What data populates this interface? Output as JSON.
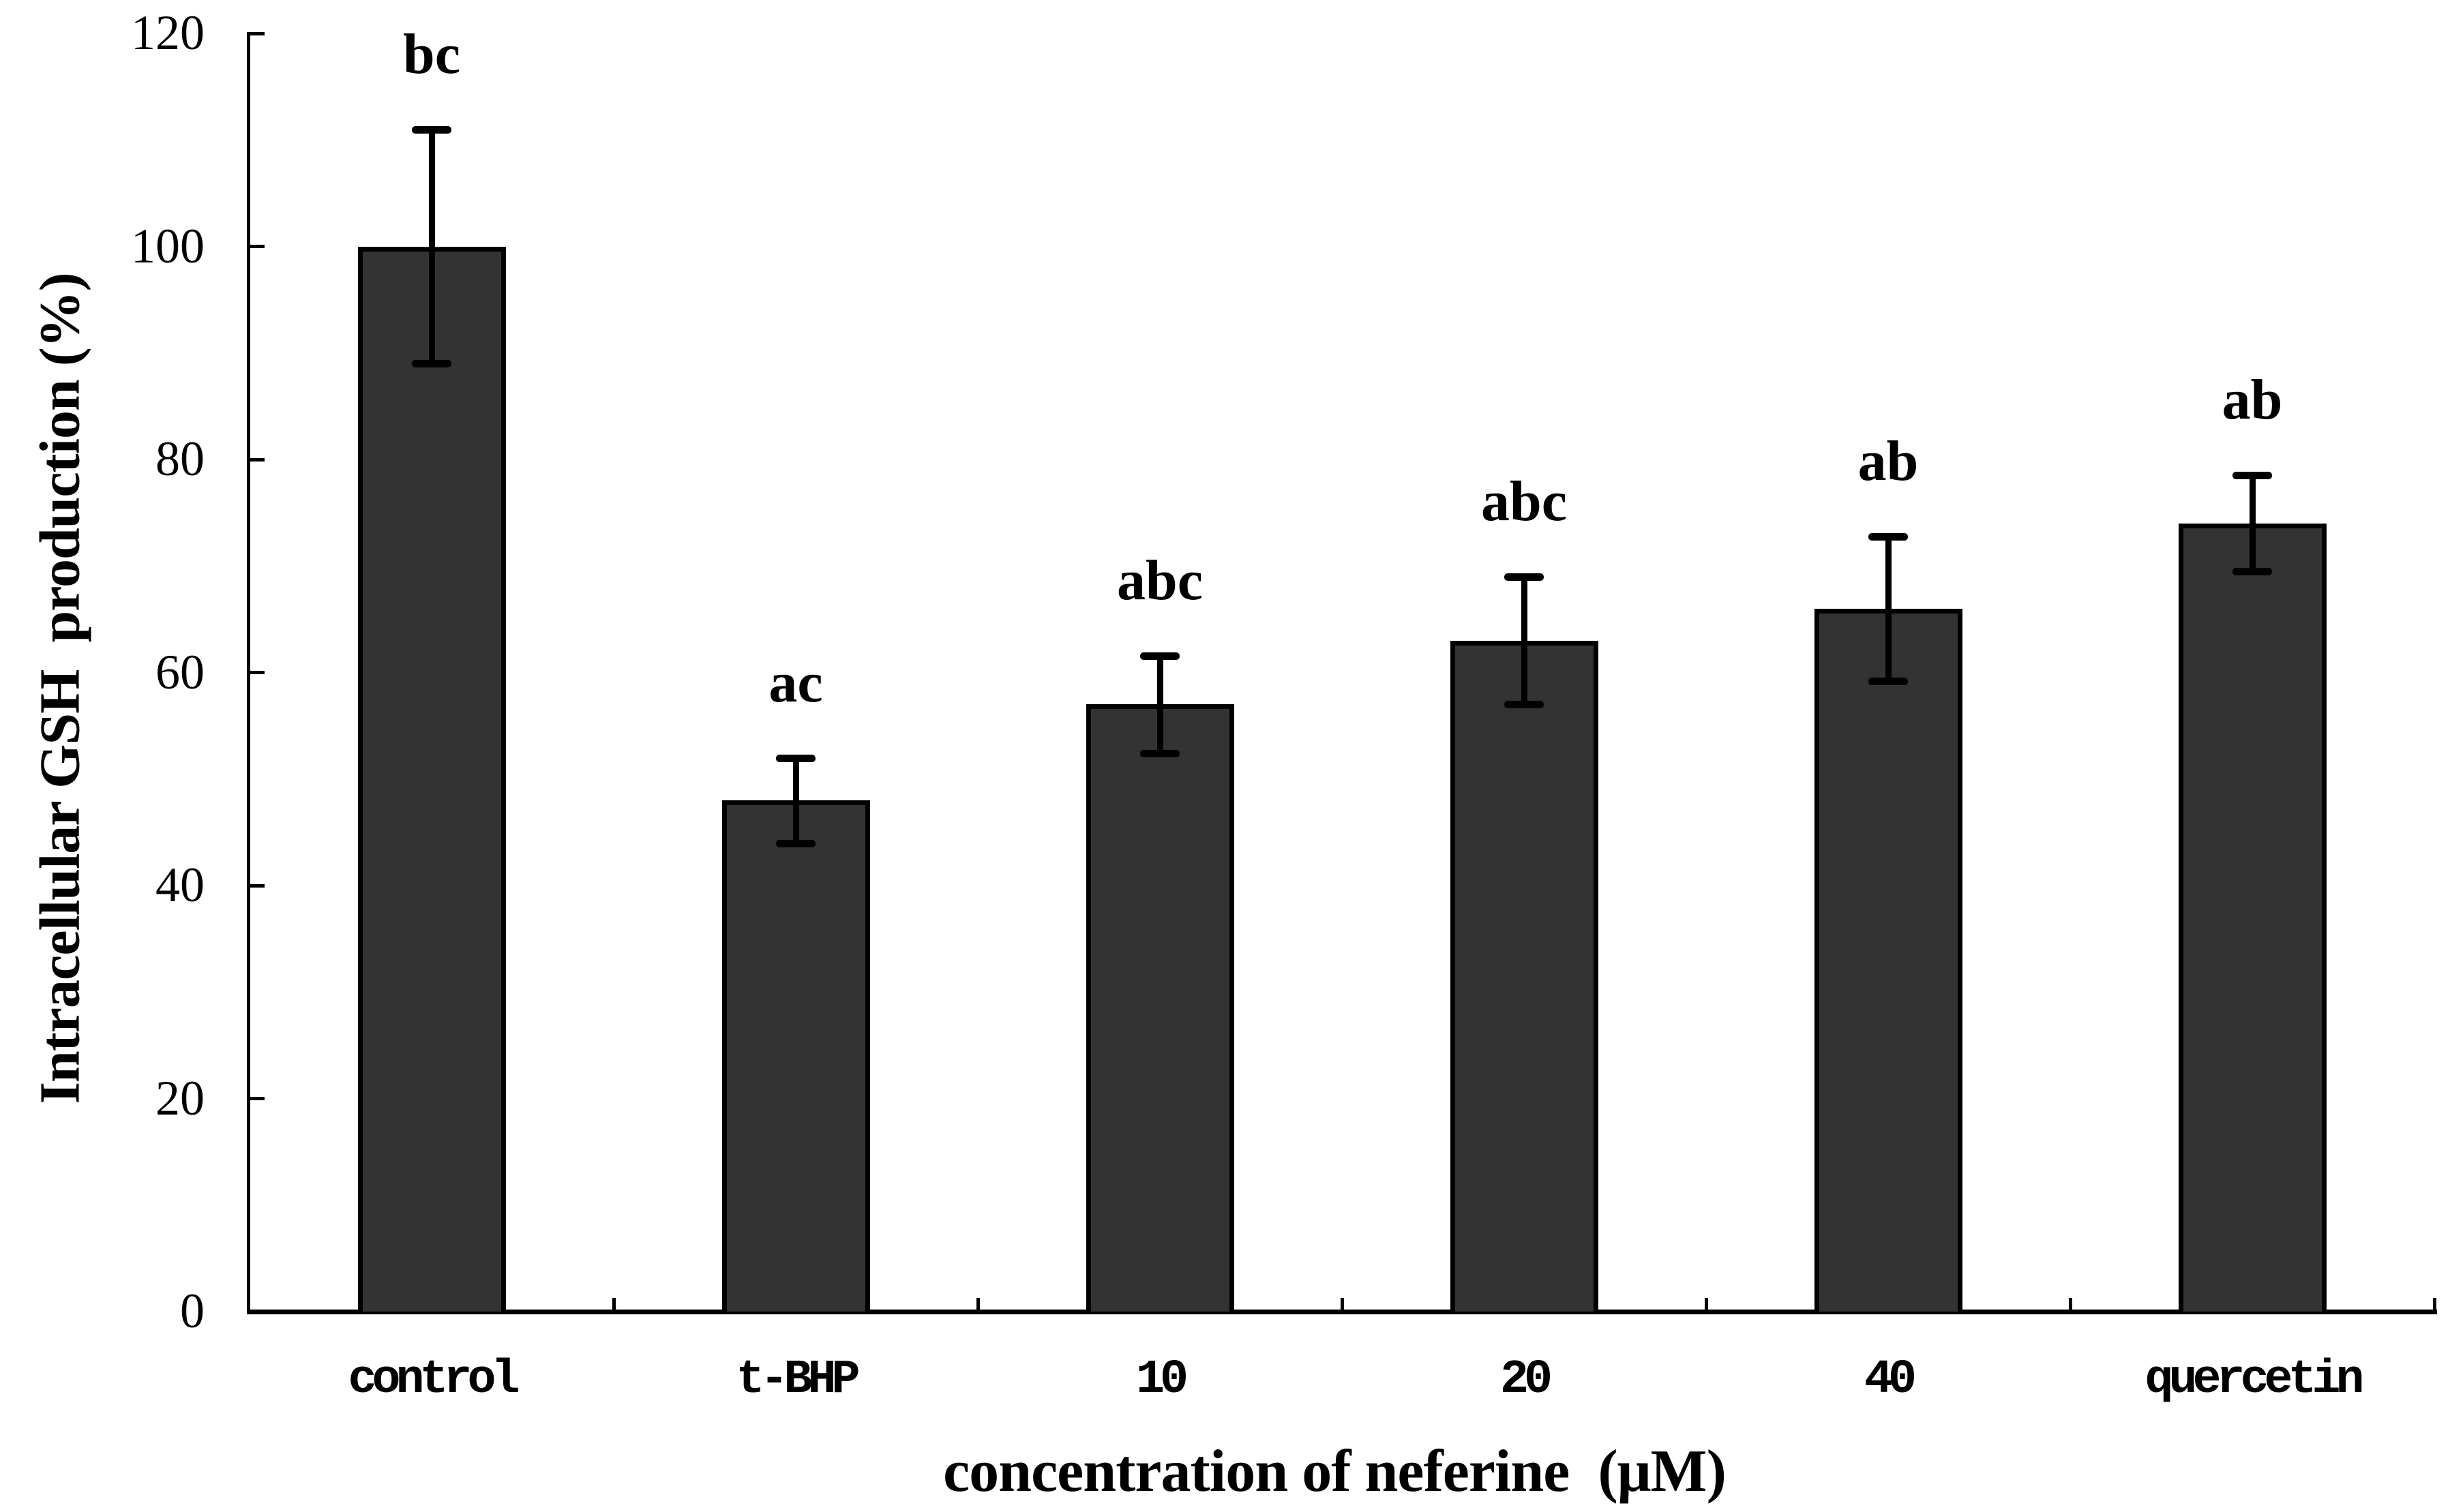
{
  "figure": {
    "background": "#ffffff",
    "text_color": "#000000"
  },
  "chart_data": {
    "type": "bar",
    "title": "",
    "categories": [
      "control",
      "t-BHP",
      "10",
      "20",
      "40",
      "quercetin"
    ],
    "series": [
      {
        "name": "Intracellular GSH production (%)",
        "values": [
          100,
          48,
          57,
          63,
          66,
          74
        ],
        "errors": [
          11,
          4,
          4.6,
          6,
          6.8,
          4.5
        ]
      }
    ],
    "point_labels": [
      "bc",
      "ac",
      "abc",
      "abc",
      "ab",
      "ab"
    ],
    "xlabel": "concentration of neferine  (μM)",
    "ylabel": "Intracellular GSH  production (%)",
    "ylim": [
      0,
      120
    ],
    "yticks": [
      0,
      20,
      40,
      60,
      80,
      100,
      120
    ],
    "grid": false,
    "legend_position": "none",
    "bar_fill": "#333333",
    "bar_edge": "#000000",
    "error_color": "#000000"
  }
}
